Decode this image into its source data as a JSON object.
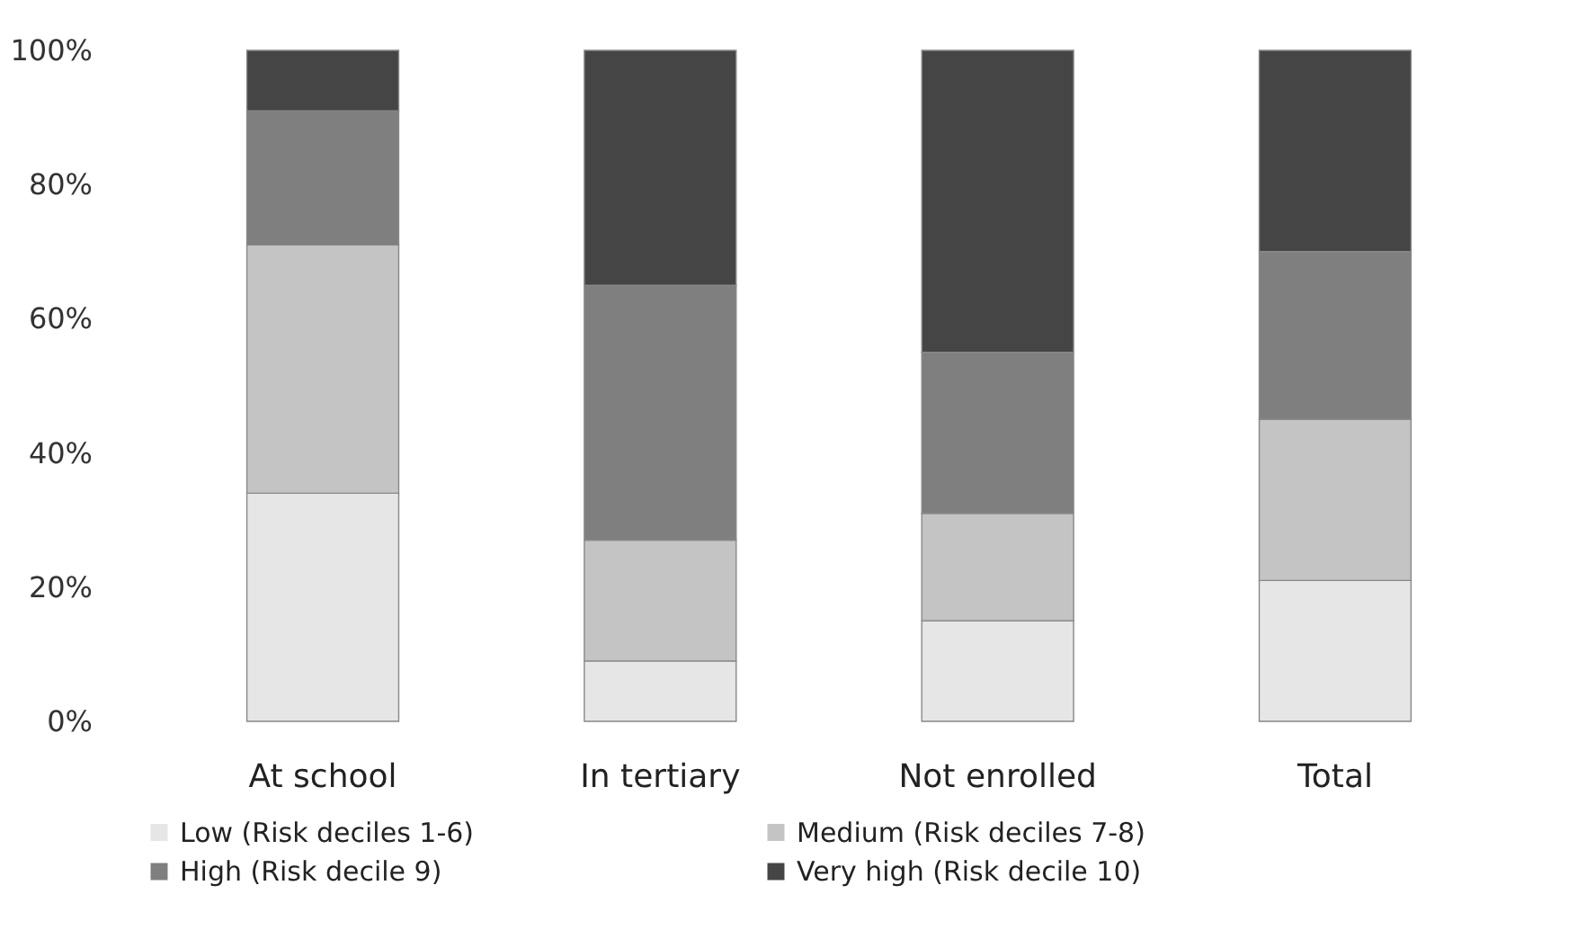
{
  "chart_data": {
    "type": "bar",
    "stacked": true,
    "categories": [
      "At school",
      "In tertiary",
      "Not enrolled",
      "Total"
    ],
    "series": [
      {
        "name": "Low (Risk deciles 1-6)",
        "color": "#e6e6e6",
        "values": [
          34,
          9,
          15,
          21
        ]
      },
      {
        "name": "Medium (Risk deciles 7-8)",
        "color": "#c4c4c4",
        "values": [
          37,
          18,
          16,
          24
        ]
      },
      {
        "name": "High (Risk decile 9)",
        "color": "#7f7f7f",
        "values": [
          20,
          38,
          24,
          25
        ]
      },
      {
        "name": "Very high (Risk decile 10)",
        "color": "#454545",
        "values": [
          9,
          35,
          45,
          30
        ]
      }
    ],
    "ylim": [
      0,
      100
    ],
    "yticks": [
      {
        "value": 0,
        "label": "0%"
      },
      {
        "value": 20,
        "label": "20%"
      },
      {
        "value": 40,
        "label": "40%"
      },
      {
        "value": 60,
        "label": "60%"
      },
      {
        "value": 80,
        "label": "80%"
      },
      {
        "value": 100,
        "label": "100%"
      }
    ],
    "grid": false,
    "legend": "bottom"
  }
}
